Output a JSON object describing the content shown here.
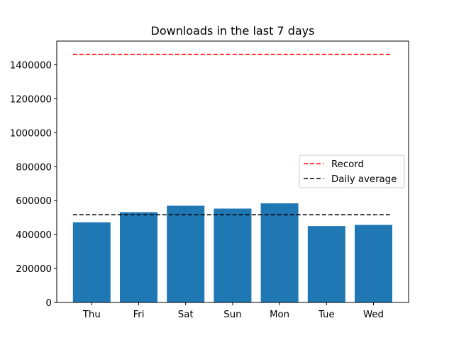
{
  "chart_data": {
    "type": "bar",
    "title": "Downloads in the last 7 days",
    "xlabel": "",
    "ylabel": "",
    "categories": [
      "Thu",
      "Fri",
      "Sat",
      "Sun",
      "Mon",
      "Tue",
      "Wed"
    ],
    "values": [
      472000,
      532000,
      570000,
      553000,
      584000,
      450000,
      457000
    ],
    "bar_color": "#1f77b4",
    "ylim": [
      0,
      1540000
    ],
    "yticks": [
      0,
      200000,
      400000,
      600000,
      800000,
      1000000,
      1200000,
      1400000
    ],
    "ytick_labels": [
      "0",
      "200000",
      "400000",
      "600000",
      "800000",
      "1000000",
      "1200000",
      "1400000"
    ],
    "reference_lines": [
      {
        "name": "Record",
        "value": 1462000,
        "color": "#ff0000",
        "style": "dashed"
      },
      {
        "name": "Daily average",
        "value": 517000,
        "color": "#000000",
        "style": "dashed"
      }
    ],
    "legend": {
      "placement": "center-right",
      "entries": [
        "Record",
        "Daily average"
      ]
    },
    "grid": false
  }
}
